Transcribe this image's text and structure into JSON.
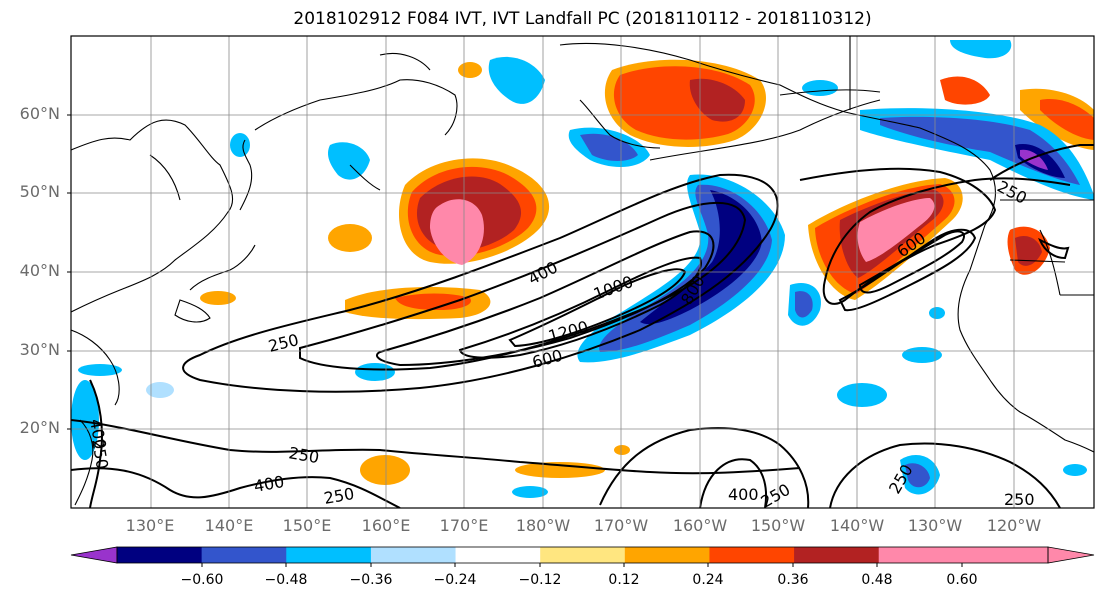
{
  "title": "2018102912 F084 IVT, IVT Landfall PC (2018110112 - 2018110312)",
  "lat_labels": [
    "60°N",
    "50°N",
    "40°N",
    "30°N",
    "20°N"
  ],
  "lon_labels": [
    "130°E",
    "140°E",
    "150°E",
    "160°E",
    "170°E",
    "180°W",
    "170°W",
    "160°W",
    "150°W",
    "140°W",
    "130°W",
    "120°W"
  ],
  "contour_labels": [
    "250",
    "400",
    "1000",
    "800",
    "1200",
    "600",
    "250",
    "600",
    "400",
    "250",
    "250",
    "400",
    "250",
    "250",
    "400",
    "250",
    "250"
  ],
  "colorbar": {
    "ticks": [
      "−0.60",
      "−0.48",
      "−0.36",
      "−0.24",
      "−0.12",
      "0.12",
      "0.24",
      "0.36",
      "0.48",
      "0.60"
    ],
    "colors": [
      "#9933cc",
      "#000080",
      "#3355cc",
      "#00bfff",
      "#b0e0ff",
      "#ffffff",
      "#ffe680",
      "#ffa500",
      "#ff4500",
      "#b22222",
      "#ff88aa",
      "#ff88aa"
    ]
  },
  "colors": {
    "neg_strong": "#000080",
    "neg_mid": "#3355cc",
    "neg_weak": "#00bfff",
    "neg_faint": "#b0e0ff",
    "pos_faint": "#ffe680",
    "pos_weak": "#ffa500",
    "pos_mid": "#ff4500",
    "pos_strong": "#b22222",
    "pos_max": "#ff88aa"
  }
}
